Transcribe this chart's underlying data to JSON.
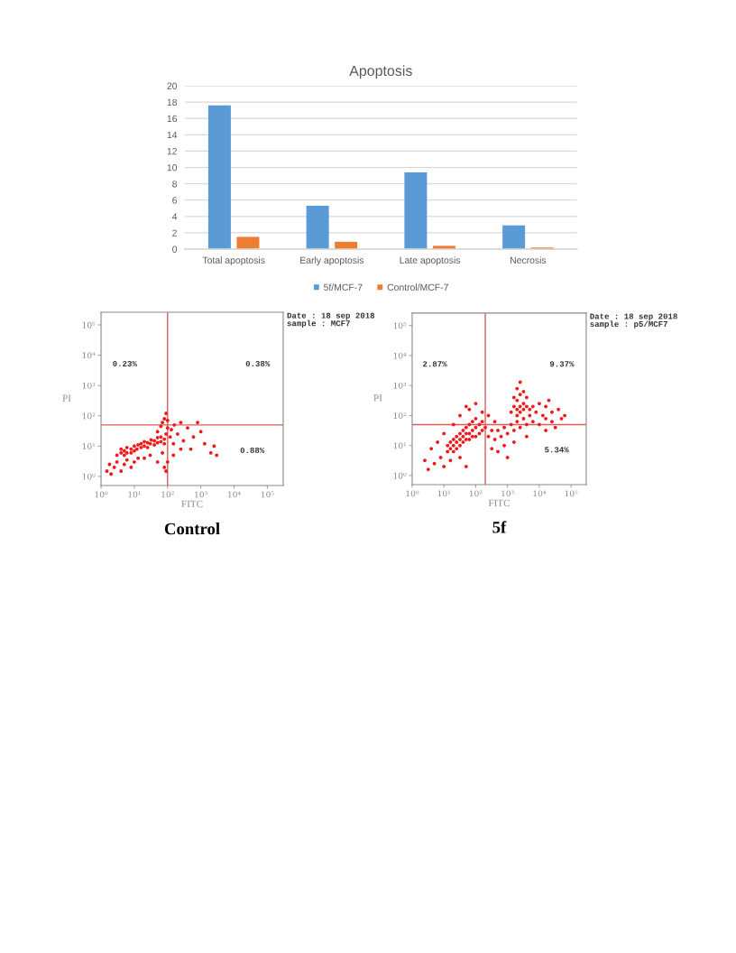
{
  "chart_data": [
    {
      "type": "bar",
      "title": "Apoptosis",
      "categories": [
        "Total apoptosis",
        "Early apoptosis",
        "Late apoptosis",
        "Necrosis"
      ],
      "series": [
        {
          "name": "5f/MCF-7",
          "color": "#5b9bd5",
          "values": [
            17.6,
            5.3,
            9.4,
            2.9
          ]
        },
        {
          "name": "Control/MCF-7",
          "color": "#ed7d31",
          "values": [
            1.5,
            0.9,
            0.4,
            0.2
          ]
        }
      ],
      "ylim": [
        0,
        20
      ],
      "yticks": [
        0,
        2,
        4,
        6,
        8,
        10,
        12,
        14,
        16,
        18,
        20
      ],
      "grid": "y",
      "legend": "bottom"
    },
    {
      "type": "scatter",
      "title": "Control",
      "xlabel": "FITC",
      "ylabel": "PI",
      "log": "xy",
      "marker": "circle",
      "series": [
        {
          "color": "#ee1c1c",
          "x": [
            3,
            4,
            4,
            5,
            5,
            6,
            6,
            8,
            8,
            10,
            10,
            12,
            13,
            16,
            16,
            20,
            20,
            25,
            25,
            30,
            32,
            40,
            40,
            50,
            50,
            63,
            63,
            80,
            80,
            90,
            1.5,
            1.8,
            2,
            2.5,
            3,
            4,
            5,
            6,
            8,
            10,
            13,
            20,
            30,
            50,
            70,
            80,
            90,
            50,
            63,
            70,
            80,
            90,
            100,
            100,
            120,
            130,
            150,
            160,
            200,
            250,
            300,
            400,
            500,
            600,
            800,
            1000,
            1300,
            2000,
            2500,
            3000,
            150,
            250,
            100
          ],
          "values": [
            5,
            6,
            8,
            5,
            7,
            6,
            9,
            6,
            8,
            7,
            10,
            8,
            11,
            9,
            12,
            10,
            14,
            9,
            13,
            12,
            16,
            11,
            15,
            13,
            19,
            14,
            20,
            12,
            17,
            25,
            1.5,
            2.5,
            1.2,
            2,
            3,
            1.5,
            2.5,
            3.5,
            2,
            3,
            4,
            4,
            5,
            3,
            6,
            2,
            1.5,
            30,
            45,
            60,
            80,
            120,
            40,
            70,
            20,
            35,
            12,
            50,
            25,
            60,
            15,
            40,
            8,
            20,
            60,
            30,
            12,
            6,
            10,
            5,
            5,
            8,
            3
          ]
        }
      ],
      "xlim": [
        1,
        300000
      ],
      "ylim": [
        0.5,
        260000
      ],
      "xticks": [
        {
          "value": 1,
          "label": "10⁰"
        },
        {
          "value": 10,
          "label": "10¹"
        },
        {
          "value": 100,
          "label": "10²"
        },
        {
          "value": 1000,
          "label": "10³"
        },
        {
          "value": 10000,
          "label": "10⁴"
        },
        {
          "value": 100000,
          "label": "10⁵"
        }
      ],
      "yticks": [
        {
          "value": 1,
          "label": "10⁰"
        },
        {
          "value": 10,
          "label": "10¹"
        },
        {
          "value": 100,
          "label": "10²"
        },
        {
          "value": 1000,
          "label": "10³"
        },
        {
          "value": 10000,
          "label": "10⁴"
        },
        {
          "value": 100000,
          "label": "10⁵"
        }
      ],
      "ref_lines": [
        {
          "axis": "x",
          "value": 100,
          "color": "#e05a5a"
        },
        {
          "axis": "y",
          "value": 50,
          "color": "#e05a5a"
        }
      ],
      "annotations": [
        "0.23%",
        "0.38%",
        "0.88%",
        "Date : 18 sep 2018",
        "sample : MCF7"
      ]
    },
    {
      "type": "scatter",
      "title": "5f",
      "xlabel": "FITC",
      "ylabel": "PI",
      "log": "xy",
      "marker": "circle",
      "series": [
        {
          "color": "#ee1c1c",
          "x": [
            13,
            13,
            16,
            16,
            20,
            20,
            20,
            25,
            25,
            25,
            32,
            32,
            32,
            40,
            40,
            40,
            50,
            50,
            50,
            63,
            63,
            63,
            79,
            79,
            79,
            100,
            100,
            100,
            130,
            130,
            160,
            160,
            200,
            2.5,
            4,
            5,
            6.3,
            7.9,
            10,
            10,
            16,
            32,
            50,
            20,
            3.2,
            32,
            63,
            100,
            160,
            250,
            50,
            250,
            320,
            400,
            500,
            630,
            790,
            1000,
            1300,
            1600,
            2000,
            2500,
            3200,
            4000,
            6300,
            10000,
            16000,
            25000,
            5000,
            400,
            790,
            1600,
            500,
            4000,
            16000,
            32000,
            1000,
            320,
            1300,
            1600,
            1600,
            2000,
            2000,
            2000,
            2000,
            2500,
            2500,
            2500,
            2500,
            3200,
            3200,
            3200,
            4000,
            4000,
            5000,
            6300,
            7900,
            10000,
            13000,
            16000,
            25000,
            40000,
            63000,
            20000,
            50000
          ],
          "values": [
            6.3,
            10,
            7.9,
            13,
            6.3,
            10,
            16,
            7.9,
            13,
            20,
            10,
            16,
            25,
            13,
            20,
            32,
            16,
            25,
            40,
            16,
            25,
            50,
            20,
            32,
            63,
            20,
            40,
            79,
            25,
            50,
            32,
            63,
            40,
            3.2,
            7.9,
            2.5,
            13,
            4,
            25,
            2,
            3.2,
            4,
            2,
            50,
            1.6,
            100,
            160,
            250,
            130,
            100,
            200,
            20,
            32,
            16,
            32,
            20,
            40,
            25,
            50,
            32,
            63,
            40,
            79,
            50,
            63,
            50,
            79,
            63,
            100,
            63,
            10,
            13,
            6.3,
            20,
            32,
            40,
            4,
            7.9,
            130,
            200,
            400,
            100,
            160,
            320,
            790,
            130,
            200,
            500,
            1300,
            160,
            250,
            630,
            200,
            400,
            160,
            200,
            130,
            250,
            100,
            200,
            130,
            160,
            100,
            320,
            79
          ]
        }
      ],
      "xlim": [
        1,
        300000
      ],
      "ylim": [
        0.5,
        260000
      ],
      "xticks": [
        {
          "value": 1,
          "label": "10⁰"
        },
        {
          "value": 10,
          "label": "10¹"
        },
        {
          "value": 100,
          "label": "10²"
        },
        {
          "value": 1000,
          "label": "10³"
        },
        {
          "value": 10000,
          "label": "10⁴"
        },
        {
          "value": 100000,
          "label": "10⁵"
        }
      ],
      "yticks": [
        {
          "value": 1,
          "label": "10⁰"
        },
        {
          "value": 10,
          "label": "10¹"
        },
        {
          "value": 100,
          "label": "10²"
        },
        {
          "value": 1000,
          "label": "10³"
        },
        {
          "value": 10000,
          "label": "10⁴"
        },
        {
          "value": 100000,
          "label": "10⁵"
        }
      ],
      "ref_lines": [
        {
          "axis": "x",
          "value": 200,
          "color": "#e05a5a"
        },
        {
          "axis": "y",
          "value": 50,
          "color": "#e05a5a"
        }
      ],
      "annotations": [
        "2.87%",
        "9.37%",
        "5.34%",
        "Date : 18 sep 2018",
        "sample : p5/MCF7"
      ]
    }
  ]
}
